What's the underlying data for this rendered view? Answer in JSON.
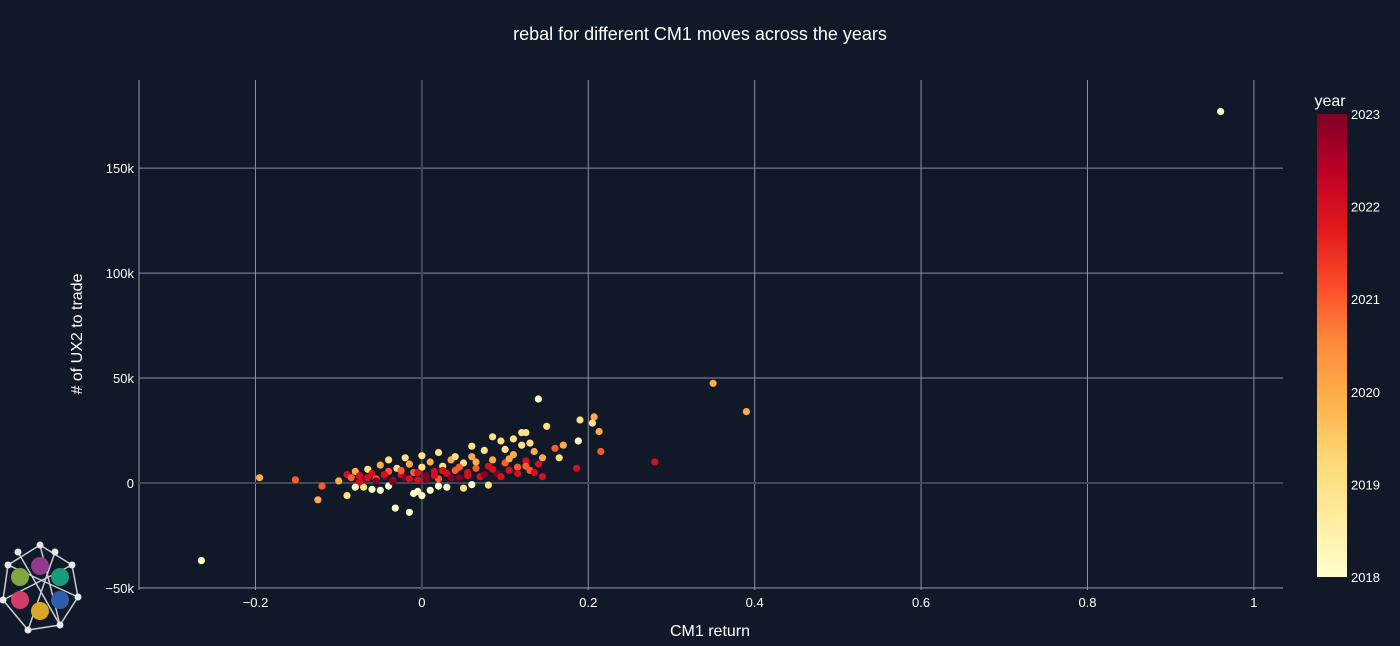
{
  "chart_data": {
    "type": "scatter",
    "title": "rebal for different CM1 moves across the years",
    "xlabel": "CM1 return",
    "ylabel": "# of UX2 to trade",
    "xlim": [
      -0.34,
      1.035
    ],
    "ylim": [
      -51000,
      192000
    ],
    "xticks": [
      -0.2,
      0,
      0.2,
      0.4,
      0.6,
      0.8,
      1
    ],
    "xtick_labels": [
      "−0.2",
      "0",
      "0.2",
      "0.4",
      "0.6",
      "0.8",
      "1"
    ],
    "yticks": [
      -50000,
      0,
      50000,
      100000,
      150000
    ],
    "ytick_labels": [
      "−50k",
      "0",
      "50k",
      "100k",
      "150k"
    ],
    "grid": true,
    "colorbar": {
      "title": "year",
      "range": [
        2018,
        2023
      ],
      "ticks": [
        2018,
        2019,
        2020,
        2021,
        2022,
        2023
      ],
      "colorscale": [
        "#ffffcc",
        "#ffeda0",
        "#fed976",
        "#feb24c",
        "#fd8d3c",
        "#fc4e2a",
        "#e31a1c",
        "#bd0026",
        "#800026"
      ]
    },
    "points": [
      {
        "x": 0.96,
        "y": 177000,
        "year": 2018
      },
      {
        "x": -0.265,
        "y": -37000,
        "year": 2018
      },
      {
        "x": 0.14,
        "y": 40000,
        "year": 2018
      },
      {
        "x": 0.35,
        "y": 47500,
        "year": 2020
      },
      {
        "x": 0.39,
        "y": 34000,
        "year": 2020
      },
      {
        "x": 0.28,
        "y": 10000,
        "year": 2022
      },
      {
        "x": 0.207,
        "y": 31500,
        "year": 2020
      },
      {
        "x": 0.19,
        "y": 30000,
        "year": 2019
      },
      {
        "x": 0.205,
        "y": 28500,
        "year": 2019
      },
      {
        "x": 0.213,
        "y": 24500,
        "year": 2020
      },
      {
        "x": 0.188,
        "y": 20000,
        "year": 2018
      },
      {
        "x": 0.215,
        "y": 15000,
        "year": 2021
      },
      {
        "x": 0.186,
        "y": 7000,
        "year": 2022
      },
      {
        "x": 0.15,
        "y": 27000,
        "year": 2019
      },
      {
        "x": 0.17,
        "y": 18000,
        "year": 2020
      },
      {
        "x": 0.165,
        "y": 12000,
        "year": 2019
      },
      {
        "x": 0.16,
        "y": 16500,
        "year": 2021
      },
      {
        "x": 0.145,
        "y": 3000,
        "year": 2022
      },
      {
        "x": 0.12,
        "y": 24000,
        "year": 2019
      },
      {
        "x": 0.125,
        "y": 24000,
        "year": 2019
      },
      {
        "x": -0.195,
        "y": 2500,
        "year": 2020
      },
      {
        "x": -0.152,
        "y": 1500,
        "year": 2021
      },
      {
        "x": -0.125,
        "y": -8000,
        "year": 2020
      },
      {
        "x": -0.12,
        "y": -1500,
        "year": 2021
      },
      {
        "x": -0.1,
        "y": 1000,
        "year": 2020
      },
      {
        "x": -0.032,
        "y": -12000,
        "year": 2018
      },
      {
        "x": -0.015,
        "y": -14000,
        "year": 2018
      },
      {
        "x": -0.01,
        "y": -5000,
        "year": 2018
      },
      {
        "x": -0.005,
        "y": -4000,
        "year": 2018
      },
      {
        "x": 0.0,
        "y": -6000,
        "year": 2018
      },
      {
        "x": -0.09,
        "y": -6000,
        "year": 2019
      },
      {
        "x": -0.07,
        "y": -2000,
        "year": 2019
      },
      {
        "x": -0.06,
        "y": -3000,
        "year": 2018
      },
      {
        "x": -0.04,
        "y": -1500,
        "year": 2018
      },
      {
        "x": 0.02,
        "y": -1500,
        "year": 2018
      },
      {
        "x": 0.05,
        "y": -2500,
        "year": 2019
      },
      {
        "x": 0.06,
        "y": -800,
        "year": 2018
      },
      {
        "x": -0.09,
        "y": 4000,
        "year": 2022
      },
      {
        "x": -0.085,
        "y": 2500,
        "year": 2021
      },
      {
        "x": -0.08,
        "y": 5500,
        "year": 2020
      },
      {
        "x": -0.075,
        "y": 3500,
        "year": 2022
      },
      {
        "x": -0.07,
        "y": 1500,
        "year": 2023
      },
      {
        "x": -0.065,
        "y": 6500,
        "year": 2019
      },
      {
        "x": -0.06,
        "y": 4500,
        "year": 2022
      },
      {
        "x": -0.055,
        "y": 2000,
        "year": 2021
      },
      {
        "x": -0.05,
        "y": 8500,
        "year": 2020
      },
      {
        "x": -0.045,
        "y": 3000,
        "year": 2023
      },
      {
        "x": -0.04,
        "y": 5500,
        "year": 2021
      },
      {
        "x": -0.035,
        "y": 1000,
        "year": 2022
      },
      {
        "x": -0.03,
        "y": 7000,
        "year": 2019
      },
      {
        "x": -0.025,
        "y": 4000,
        "year": 2022
      },
      {
        "x": -0.02,
        "y": 2500,
        "year": 2023
      },
      {
        "x": -0.015,
        "y": 9000,
        "year": 2020
      },
      {
        "x": -0.01,
        "y": 5000,
        "year": 2021
      },
      {
        "x": -0.005,
        "y": 1500,
        "year": 2022
      },
      {
        "x": 0.0,
        "y": 7500,
        "year": 2019
      },
      {
        "x": 0.005,
        "y": 3500,
        "year": 2023
      },
      {
        "x": 0.01,
        "y": 10000,
        "year": 2020
      },
      {
        "x": 0.015,
        "y": 5500,
        "year": 2022
      },
      {
        "x": 0.02,
        "y": 2000,
        "year": 2021
      },
      {
        "x": 0.025,
        "y": 8000,
        "year": 2019
      },
      {
        "x": 0.03,
        "y": 4500,
        "year": 2022
      },
      {
        "x": 0.035,
        "y": 11000,
        "year": 2020
      },
      {
        "x": 0.04,
        "y": 6000,
        "year": 2021
      },
      {
        "x": 0.045,
        "y": 2500,
        "year": 2023
      },
      {
        "x": 0.05,
        "y": 9500,
        "year": 2019
      },
      {
        "x": 0.055,
        "y": 5000,
        "year": 2022
      },
      {
        "x": 0.06,
        "y": 12500,
        "year": 2020
      },
      {
        "x": 0.065,
        "y": 7000,
        "year": 2021
      },
      {
        "x": 0.07,
        "y": 3000,
        "year": 2022
      },
      {
        "x": 0.075,
        "y": 15500,
        "year": 2019
      },
      {
        "x": 0.08,
        "y": 8000,
        "year": 2022
      },
      {
        "x": 0.085,
        "y": 11000,
        "year": 2020
      },
      {
        "x": 0.09,
        "y": 4500,
        "year": 2023
      },
      {
        "x": 0.095,
        "y": 20000,
        "year": 2019
      },
      {
        "x": 0.1,
        "y": 9500,
        "year": 2021
      },
      {
        "x": 0.105,
        "y": 6000,
        "year": 2022
      },
      {
        "x": 0.11,
        "y": 13500,
        "year": 2020
      },
      {
        "x": 0.115,
        "y": 7500,
        "year": 2021
      },
      {
        "x": 0.12,
        "y": 18000,
        "year": 2019
      },
      {
        "x": 0.125,
        "y": 10500,
        "year": 2022
      },
      {
        "x": 0.13,
        "y": 6000,
        "year": 2021
      },
      {
        "x": 0.135,
        "y": 15000,
        "year": 2020
      },
      {
        "x": 0.14,
        "y": 9000,
        "year": 2022
      },
      {
        "x": 0.145,
        "y": 12000,
        "year": 2020
      },
      {
        "x": -0.075,
        "y": 500,
        "year": 2022
      },
      {
        "x": -0.065,
        "y": 2500,
        "year": 2022
      },
      {
        "x": -0.055,
        "y": 1000,
        "year": 2023
      },
      {
        "x": -0.045,
        "y": 4000,
        "year": 2022
      },
      {
        "x": -0.035,
        "y": 500,
        "year": 2023
      },
      {
        "x": -0.025,
        "y": 6000,
        "year": 2021
      },
      {
        "x": -0.015,
        "y": 2000,
        "year": 2022
      },
      {
        "x": -0.005,
        "y": 5000,
        "year": 2022
      },
      {
        "x": 0.005,
        "y": 1500,
        "year": 2023
      },
      {
        "x": 0.015,
        "y": 3500,
        "year": 2022
      },
      {
        "x": 0.025,
        "y": 6000,
        "year": 2022
      },
      {
        "x": 0.035,
        "y": 2500,
        "year": 2023
      },
      {
        "x": 0.045,
        "y": 7500,
        "year": 2021
      },
      {
        "x": 0.055,
        "y": 3500,
        "year": 2022
      },
      {
        "x": 0.065,
        "y": 10000,
        "year": 2020
      },
      {
        "x": 0.075,
        "y": 4000,
        "year": 2023
      },
      {
        "x": 0.085,
        "y": 6500,
        "year": 2022
      },
      {
        "x": 0.095,
        "y": 3000,
        "year": 2022
      },
      {
        "x": 0.105,
        "y": 11500,
        "year": 2020
      },
      {
        "x": 0.115,
        "y": 4500,
        "year": 2022
      },
      {
        "x": 0.125,
        "y": 8000,
        "year": 2021
      },
      {
        "x": 0.135,
        "y": 5000,
        "year": 2022
      },
      {
        "x": -0.04,
        "y": 11000,
        "year": 2019
      },
      {
        "x": -0.02,
        "y": 12000,
        "year": 2019
      },
      {
        "x": 0.0,
        "y": 13000,
        "year": 2019
      },
      {
        "x": 0.02,
        "y": 14500,
        "year": 2019
      },
      {
        "x": 0.04,
        "y": 12500,
        "year": 2019
      },
      {
        "x": 0.06,
        "y": 17500,
        "year": 2019
      },
      {
        "x": 0.085,
        "y": 22000,
        "year": 2019
      },
      {
        "x": 0.1,
        "y": 16000,
        "year": 2019
      },
      {
        "x": 0.11,
        "y": 21000,
        "year": 2019
      },
      {
        "x": 0.13,
        "y": 19000,
        "year": 2019
      },
      {
        "x": -0.08,
        "y": -2000,
        "year": 2018
      },
      {
        "x": -0.05,
        "y": -3500,
        "year": 2018
      },
      {
        "x": 0.01,
        "y": -3500,
        "year": 2018
      },
      {
        "x": 0.03,
        "y": -2000,
        "year": 2018
      },
      {
        "x": 0.08,
        "y": -1000,
        "year": 2019
      }
    ]
  },
  "logo": {
    "name": "hexagon-network-logo",
    "colors": [
      "#8e3b8e",
      "#1a9c7a",
      "#7fa843",
      "#2f5fa8",
      "#d63c6a",
      "#d8a628"
    ]
  }
}
